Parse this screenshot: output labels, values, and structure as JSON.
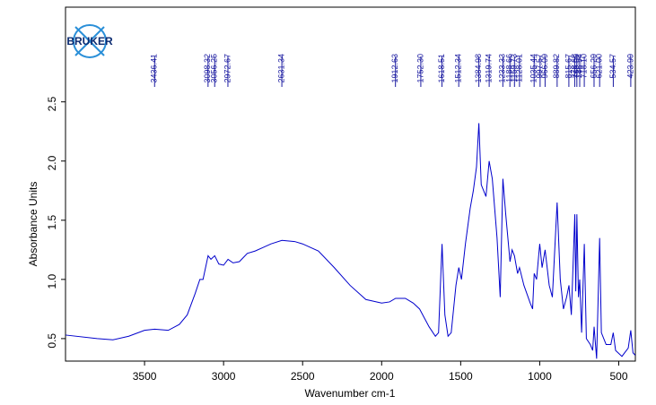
{
  "chart_data": {
    "type": "line",
    "logo_text": "BRUKER",
    "x_label": "Wavenumber cm-1",
    "y_label": "Absorbance Units",
    "xlim": [
      4000,
      395
    ],
    "ylim": [
      0.31,
      3.3
    ],
    "xticks": [
      3500,
      3000,
      2500,
      2000,
      1500,
      1000,
      500
    ],
    "yticks": [
      0.5,
      {
        "value": 1.0,
        "label": "1.0"
      },
      1.5,
      {
        "value": 2.0,
        "label": "2.0"
      },
      2.5
    ],
    "peaks": [
      {
        "value": 3436.41,
        "label": "3436.41"
      },
      {
        "value": 3098.32,
        "label": "3098.32"
      },
      {
        "value": 3056.25,
        "label": "3056.25"
      },
      {
        "value": 2972.67,
        "label": "2972.67"
      },
      {
        "value": 2631.34,
        "label": "2631.34"
      },
      {
        "value": 1912.63,
        "label": "1912.63"
      },
      {
        "value": 1752.3,
        "label": "1752.30"
      },
      {
        "value": 1618.51,
        "label": "1618.51"
      },
      {
        "value": 1512.34,
        "label": "1512.34"
      },
      {
        "value": 1384.98,
        "label": "1384.98"
      },
      {
        "value": 1319.74,
        "label": "1319.74"
      },
      {
        "value": 1233.33,
        "label": "1233.33"
      },
      {
        "value": 1188.66,
        "label": "1188.66"
      },
      {
        "value": 1159.73,
        "label": "1159.73"
      },
      {
        "value": 1128.01,
        "label": "1128.01"
      },
      {
        "value": 1035.44,
        "label": "1035.44"
      },
      {
        "value": 997.57,
        "label": "997.57"
      },
      {
        "value": 966.09,
        "label": "966.09"
      },
      {
        "value": 889.82,
        "label": "889.82"
      },
      {
        "value": 815.67,
        "label": "815.67"
      },
      {
        "value": 778.68,
        "label": "778.68"
      },
      {
        "value": 765.05,
        "label": "765.05"
      },
      {
        "value": 746.94,
        "label": "746.94"
      },
      {
        "value": 718.1,
        "label": "718.10"
      },
      {
        "value": 656.29,
        "label": "656.29"
      },
      {
        "value": 621.0,
        "label": "621.00"
      },
      {
        "value": 534.57,
        "label": "534.57"
      },
      {
        "value": 423.99,
        "label": "423.99"
      }
    ],
    "series": [
      {
        "name": "spectrum",
        "color": "#0000cc",
        "x": [
          3999,
          3800,
          3700,
          3600,
          3500,
          3436,
          3350,
          3280,
          3230,
          3180,
          3150,
          3130,
          3098,
          3080,
          3056,
          3030,
          3000,
          2972,
          2940,
          2900,
          2850,
          2800,
          2750,
          2700,
          2631,
          2550,
          2500,
          2400,
          2300,
          2200,
          2100,
          2000,
          1950,
          1912,
          1850,
          1800,
          1760,
          1752,
          1700,
          1660,
          1640,
          1618,
          1600,
          1580,
          1560,
          1530,
          1512,
          1495,
          1470,
          1440,
          1420,
          1400,
          1385,
          1370,
          1340,
          1320,
          1300,
          1270,
          1250,
          1233,
          1215,
          1188,
          1175,
          1160,
          1140,
          1128,
          1100,
          1060,
          1045,
          1035,
          1020,
          1000,
          985,
          966,
          940,
          920,
          890,
          870,
          850,
          830,
          815,
          800,
          778,
          772,
          765,
          755,
          747,
          735,
          718,
          705,
          680,
          665,
          656,
          640,
          621,
          610,
          580,
          550,
          535,
          520,
          480,
          440,
          424,
          410,
          396
        ],
        "values": [
          0.53,
          0.5,
          0.49,
          0.52,
          0.57,
          0.58,
          0.57,
          0.62,
          0.7,
          0.88,
          1.0,
          1.0,
          1.2,
          1.17,
          1.2,
          1.13,
          1.12,
          1.17,
          1.14,
          1.15,
          1.22,
          1.24,
          1.27,
          1.3,
          1.33,
          1.32,
          1.3,
          1.24,
          1.1,
          0.95,
          0.83,
          0.8,
          0.81,
          0.84,
          0.84,
          0.8,
          0.75,
          0.73,
          0.6,
          0.52,
          0.55,
          1.3,
          0.7,
          0.52,
          0.55,
          0.95,
          1.1,
          1.0,
          1.3,
          1.6,
          1.75,
          1.95,
          2.32,
          1.8,
          1.7,
          2.0,
          1.85,
          1.35,
          0.85,
          1.85,
          1.55,
          1.15,
          1.25,
          1.2,
          1.05,
          1.1,
          0.95,
          0.8,
          0.75,
          1.05,
          1.0,
          1.3,
          1.1,
          1.25,
          0.95,
          0.85,
          1.65,
          1.0,
          0.75,
          0.85,
          0.95,
          0.7,
          1.55,
          0.9,
          1.55,
          0.85,
          1.0,
          0.55,
          1.3,
          0.5,
          0.45,
          0.4,
          0.6,
          0.33,
          1.35,
          0.55,
          0.45,
          0.45,
          0.55,
          0.4,
          0.35,
          0.42,
          0.57,
          0.38,
          0.36
        ]
      }
    ]
  }
}
